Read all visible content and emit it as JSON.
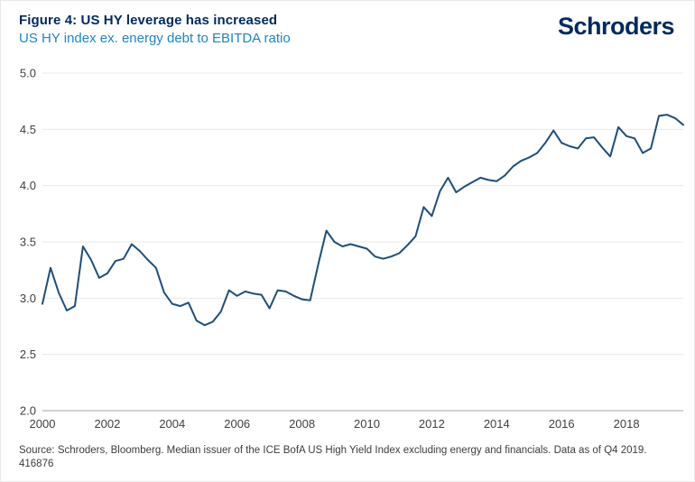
{
  "header": {
    "title": "Figure 4: US HY leverage has increased",
    "subtitle": "US HY index ex. energy debt to EBITDA ratio",
    "logo_text": "Schroders"
  },
  "footer": {
    "source": "Source: Schroders, Bloomberg. Median issuer of the ICE BofA US High Yield Index excluding energy and financials. Data as of Q4 2019.",
    "reference_number": "416876"
  },
  "colors": {
    "title_navy": "#002a5e",
    "subtitle_blue": "#1b87c6",
    "line": "#1f4e79",
    "gridline": "#e9e9e9",
    "axis_line": "#a6a6a6",
    "tick_text": "#404040"
  },
  "chart_data": {
    "type": "line",
    "title": "Figure 4: US HY leverage has increased",
    "subtitle": "US HY index ex. energy debt to EBITDA ratio",
    "series_name": "US HY index ex. energy debt to EBITDA ratio (median issuer)",
    "frequency": "quarterly",
    "x_start_year": 2000,
    "x_end_year": 2019.75,
    "x_ticks": [
      2000,
      2002,
      2004,
      2006,
      2008,
      2010,
      2012,
      2014,
      2016,
      2018
    ],
    "y_ticks": [
      2.0,
      2.5,
      3.0,
      3.5,
      4.0,
      4.5,
      5.0
    ],
    "ylim": [
      2.0,
      5.0
    ],
    "grid": true,
    "legend_position": "none",
    "values": [
      2.95,
      3.27,
      3.05,
      2.89,
      2.93,
      3.46,
      3.34,
      3.18,
      3.22,
      3.33,
      3.35,
      3.48,
      3.42,
      3.34,
      3.27,
      3.05,
      2.95,
      2.93,
      2.96,
      2.8,
      2.76,
      2.79,
      2.88,
      3.07,
      3.02,
      3.06,
      3.04,
      3.03,
      2.91,
      3.07,
      3.06,
      3.02,
      2.99,
      2.98,
      3.3,
      3.6,
      3.5,
      3.46,
      3.48,
      3.46,
      3.44,
      3.37,
      3.35,
      3.37,
      3.4,
      3.47,
      3.55,
      3.81,
      3.73,
      3.95,
      4.07,
      3.94,
      3.99,
      4.03,
      4.07,
      4.05,
      4.04,
      4.09,
      4.17,
      4.22,
      4.25,
      4.29,
      4.38,
      4.49,
      4.38,
      4.35,
      4.33,
      4.42,
      4.43,
      4.34,
      4.26,
      4.52,
      4.44,
      4.42,
      4.29,
      4.33,
      4.62,
      4.63,
      4.6,
      4.54
    ]
  }
}
